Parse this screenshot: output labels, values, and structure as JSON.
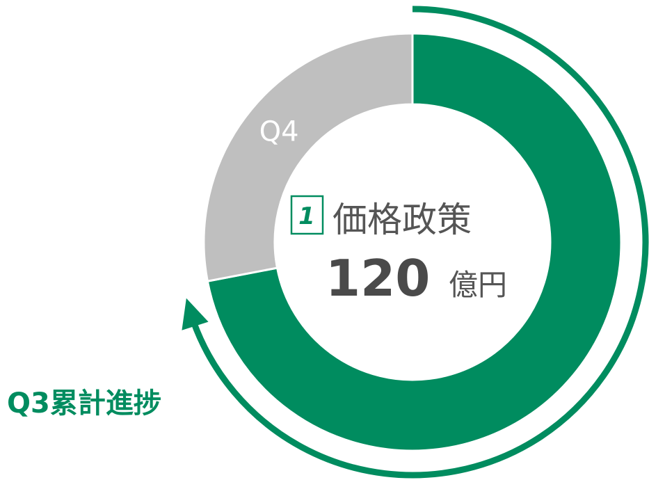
{
  "chart_data": {
    "type": "donut",
    "categories": [
      "Q3累計進捗",
      "Q4"
    ],
    "values": [
      72,
      28
    ],
    "colors": [
      "#008c5f",
      "#bfbfbf"
    ],
    "badge": "1",
    "center_title": "価格政策",
    "center_value": "120",
    "center_unit": "億円"
  }
}
